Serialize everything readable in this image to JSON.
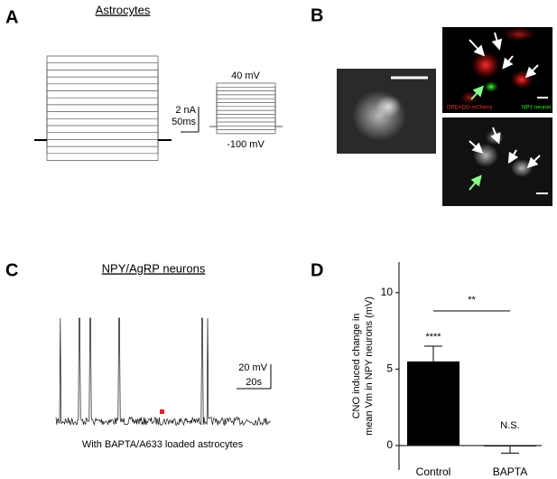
{
  "panels": {
    "a": {
      "label": "A",
      "title": "Astrocytes",
      "scale_y": "2 nA",
      "scale_x": "50ms",
      "top_label": "40 mV",
      "bottom_label": "-100 mV"
    },
    "b": {
      "label": "B",
      "red_label": "DREADD-mCherry",
      "green_label": "NPY neuron"
    },
    "c": {
      "label": "C",
      "title": "NPY/AgRP neurons",
      "scale_y": "20 mV",
      "scale_x": "20s",
      "caption": "With BAPTA/A633 loaded astrocytes"
    },
    "d": {
      "label": "D"
    }
  },
  "chart_data": {
    "type": "bar",
    "y_label": "CNO induced change in mean Vm in NPY neurons (mV)",
    "categories": [
      "Control",
      "BAPTA"
    ],
    "values": [
      5.5,
      -0.05
    ],
    "errors": [
      1.0,
      0.45
    ],
    "color": "#000000",
    "annotations": [
      "****",
      "N.S.",
      "**"
    ],
    "ylim": [
      -1.6,
      12
    ],
    "yticks": [
      0,
      5,
      10
    ]
  }
}
